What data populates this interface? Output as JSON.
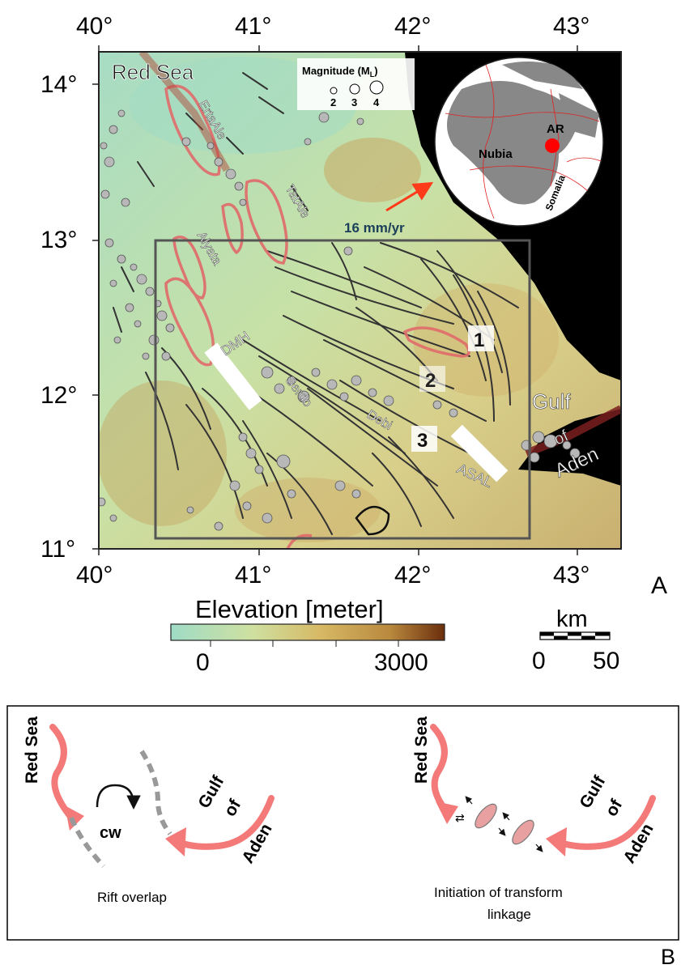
{
  "map": {
    "top_ticks": [
      "40°",
      "41°",
      "42°",
      "43°"
    ],
    "bottom_ticks": [
      "40°",
      "41°",
      "42°",
      "43°"
    ],
    "left_ticks": [
      "14°",
      "13°",
      "12°",
      "11°"
    ],
    "panel_label": "A",
    "labels": {
      "red_sea": "Red Sea",
      "ertaale": "ErtaAle",
      "tatale": "TatAle",
      "alyata": "Alyata",
      "dmh": "DMH",
      "serdo": "Serdo",
      "dobi": "Dobi",
      "asal": "ASAL",
      "gulf": "Gulf",
      "of": "of",
      "aden": "Aden",
      "box_1": "1",
      "box_2": "2",
      "box_3": "3"
    },
    "plate_rate": "16 mm/yr",
    "globe": {
      "nubia": "Nubia",
      "ar": "AR",
      "somalia": "Somalia"
    },
    "magnitude_legend": {
      "title": "Magnitude (M",
      "subscript": "L",
      "title_end": ")",
      "values": [
        "2",
        "3",
        "4"
      ]
    },
    "elevation_scale": {
      "title": "Elevation [meter]",
      "tick_min": "0",
      "tick_max": "3000",
      "colors": [
        "#9fdcc6",
        "#cfe0a0",
        "#d6b864",
        "#b9893e",
        "#6b2e0c"
      ]
    },
    "distance_scale": {
      "unit": "km",
      "tick_0": "0",
      "tick_50": "50"
    },
    "colors": {
      "rift_outline": "#e06a6a",
      "earthquake": "#b8b8b8",
      "plate_arrow": "#ff3b1a",
      "ar_dot": "#ff0000",
      "sea": "#000000"
    }
  },
  "panel_b": {
    "label": "B",
    "left": {
      "red_sea": "Red Sea",
      "gulf": "Gulf",
      "of": "of",
      "aden": "Aden",
      "rotation": "cw",
      "caption": "Rift overlap"
    },
    "right": {
      "red_sea": "Red Sea",
      "gulf": "Gulf",
      "of": "of",
      "aden": "Aden",
      "caption_line1": "Initiation of transform",
      "caption_line2": "linkage"
    },
    "colors": {
      "rift_arrow": "#f47a7a",
      "overlap": "#999999",
      "ellipse": "#e9a0a0"
    }
  }
}
